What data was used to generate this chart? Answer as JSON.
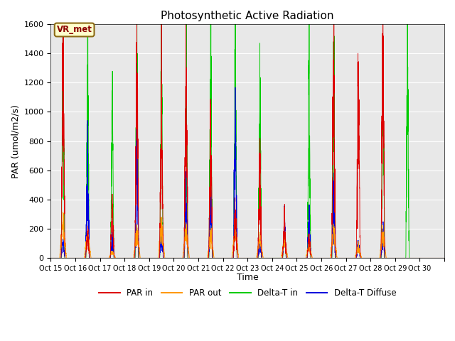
{
  "title": "Photosynthetic Active Radiation",
  "ylabel": "PAR (umol/m2/s)",
  "xlabel": "Time",
  "annotation": "VR_met",
  "ylim": [
    0,
    1600
  ],
  "yticks": [
    0,
    200,
    400,
    600,
    800,
    1000,
    1200,
    1400,
    1600
  ],
  "x_labels": [
    "Oct 15",
    "Oct 16",
    "Oct 17",
    "Oct 18",
    "Oct 19",
    "Oct 20",
    "Oct 21",
    "Oct 22",
    "Oct 23",
    "Oct 24",
    "Oct 25",
    "Oct 26",
    "Oct 27",
    "Oct 28",
    "Oct 29",
    "Oct 30"
  ],
  "color_par_in": "#dd0000",
  "color_par_out": "#ff9900",
  "color_delta_t_in": "#00cc00",
  "color_delta_t_diffuse": "#0000dd",
  "legend_labels": [
    "PAR in",
    "PAR out",
    "Delta-T in",
    "Delta-T Diffuse"
  ],
  "bg_color": "#e8e8e8",
  "n_days": 16
}
